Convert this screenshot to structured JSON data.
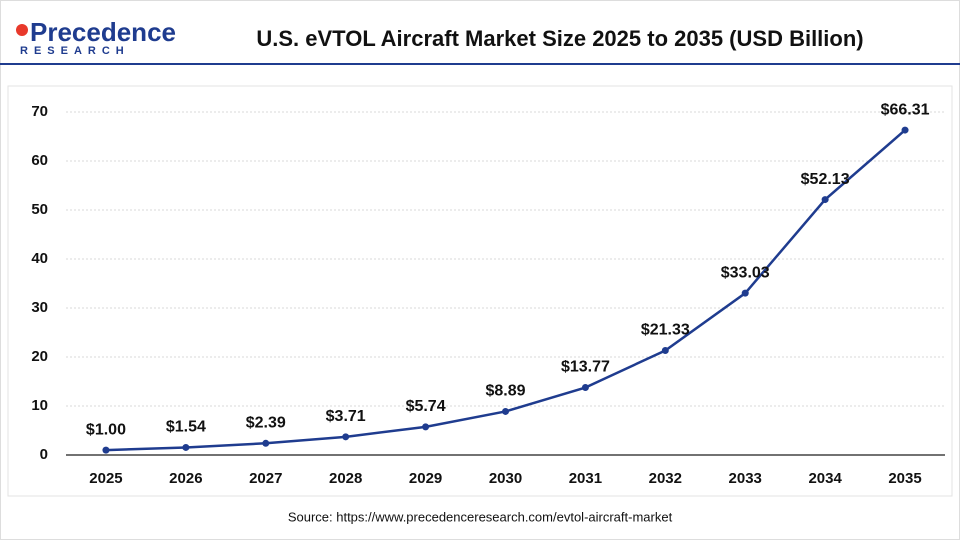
{
  "logo": {
    "name": "Precedence",
    "sub": "RESEARCH"
  },
  "chart_data": {
    "type": "line",
    "title": "U.S. eVTOL Aircraft Market Size 2025 to 2035 (USD Billion)",
    "categories": [
      "2025",
      "2026",
      "2027",
      "2028",
      "2029",
      "2030",
      "2031",
      "2032",
      "2033",
      "2034",
      "2035"
    ],
    "values": [
      1.0,
      1.54,
      2.39,
      3.71,
      5.74,
      8.89,
      13.77,
      21.33,
      33.03,
      52.13,
      66.31
    ],
    "value_labels": [
      "$1.00",
      "$1.54",
      "$2.39",
      "$3.71",
      "$5.74",
      "$8.89",
      "$13.77",
      "$21.33",
      "$33.03",
      "$52.13",
      "$66.31"
    ],
    "color": "#1f3c8f",
    "ylim": [
      0,
      70
    ],
    "yticks": [
      0,
      10,
      20,
      30,
      40,
      50,
      60,
      70
    ],
    "grid": true,
    "source": "Source: https://www.precedenceresearch.com/evtol-aircraft-market"
  }
}
